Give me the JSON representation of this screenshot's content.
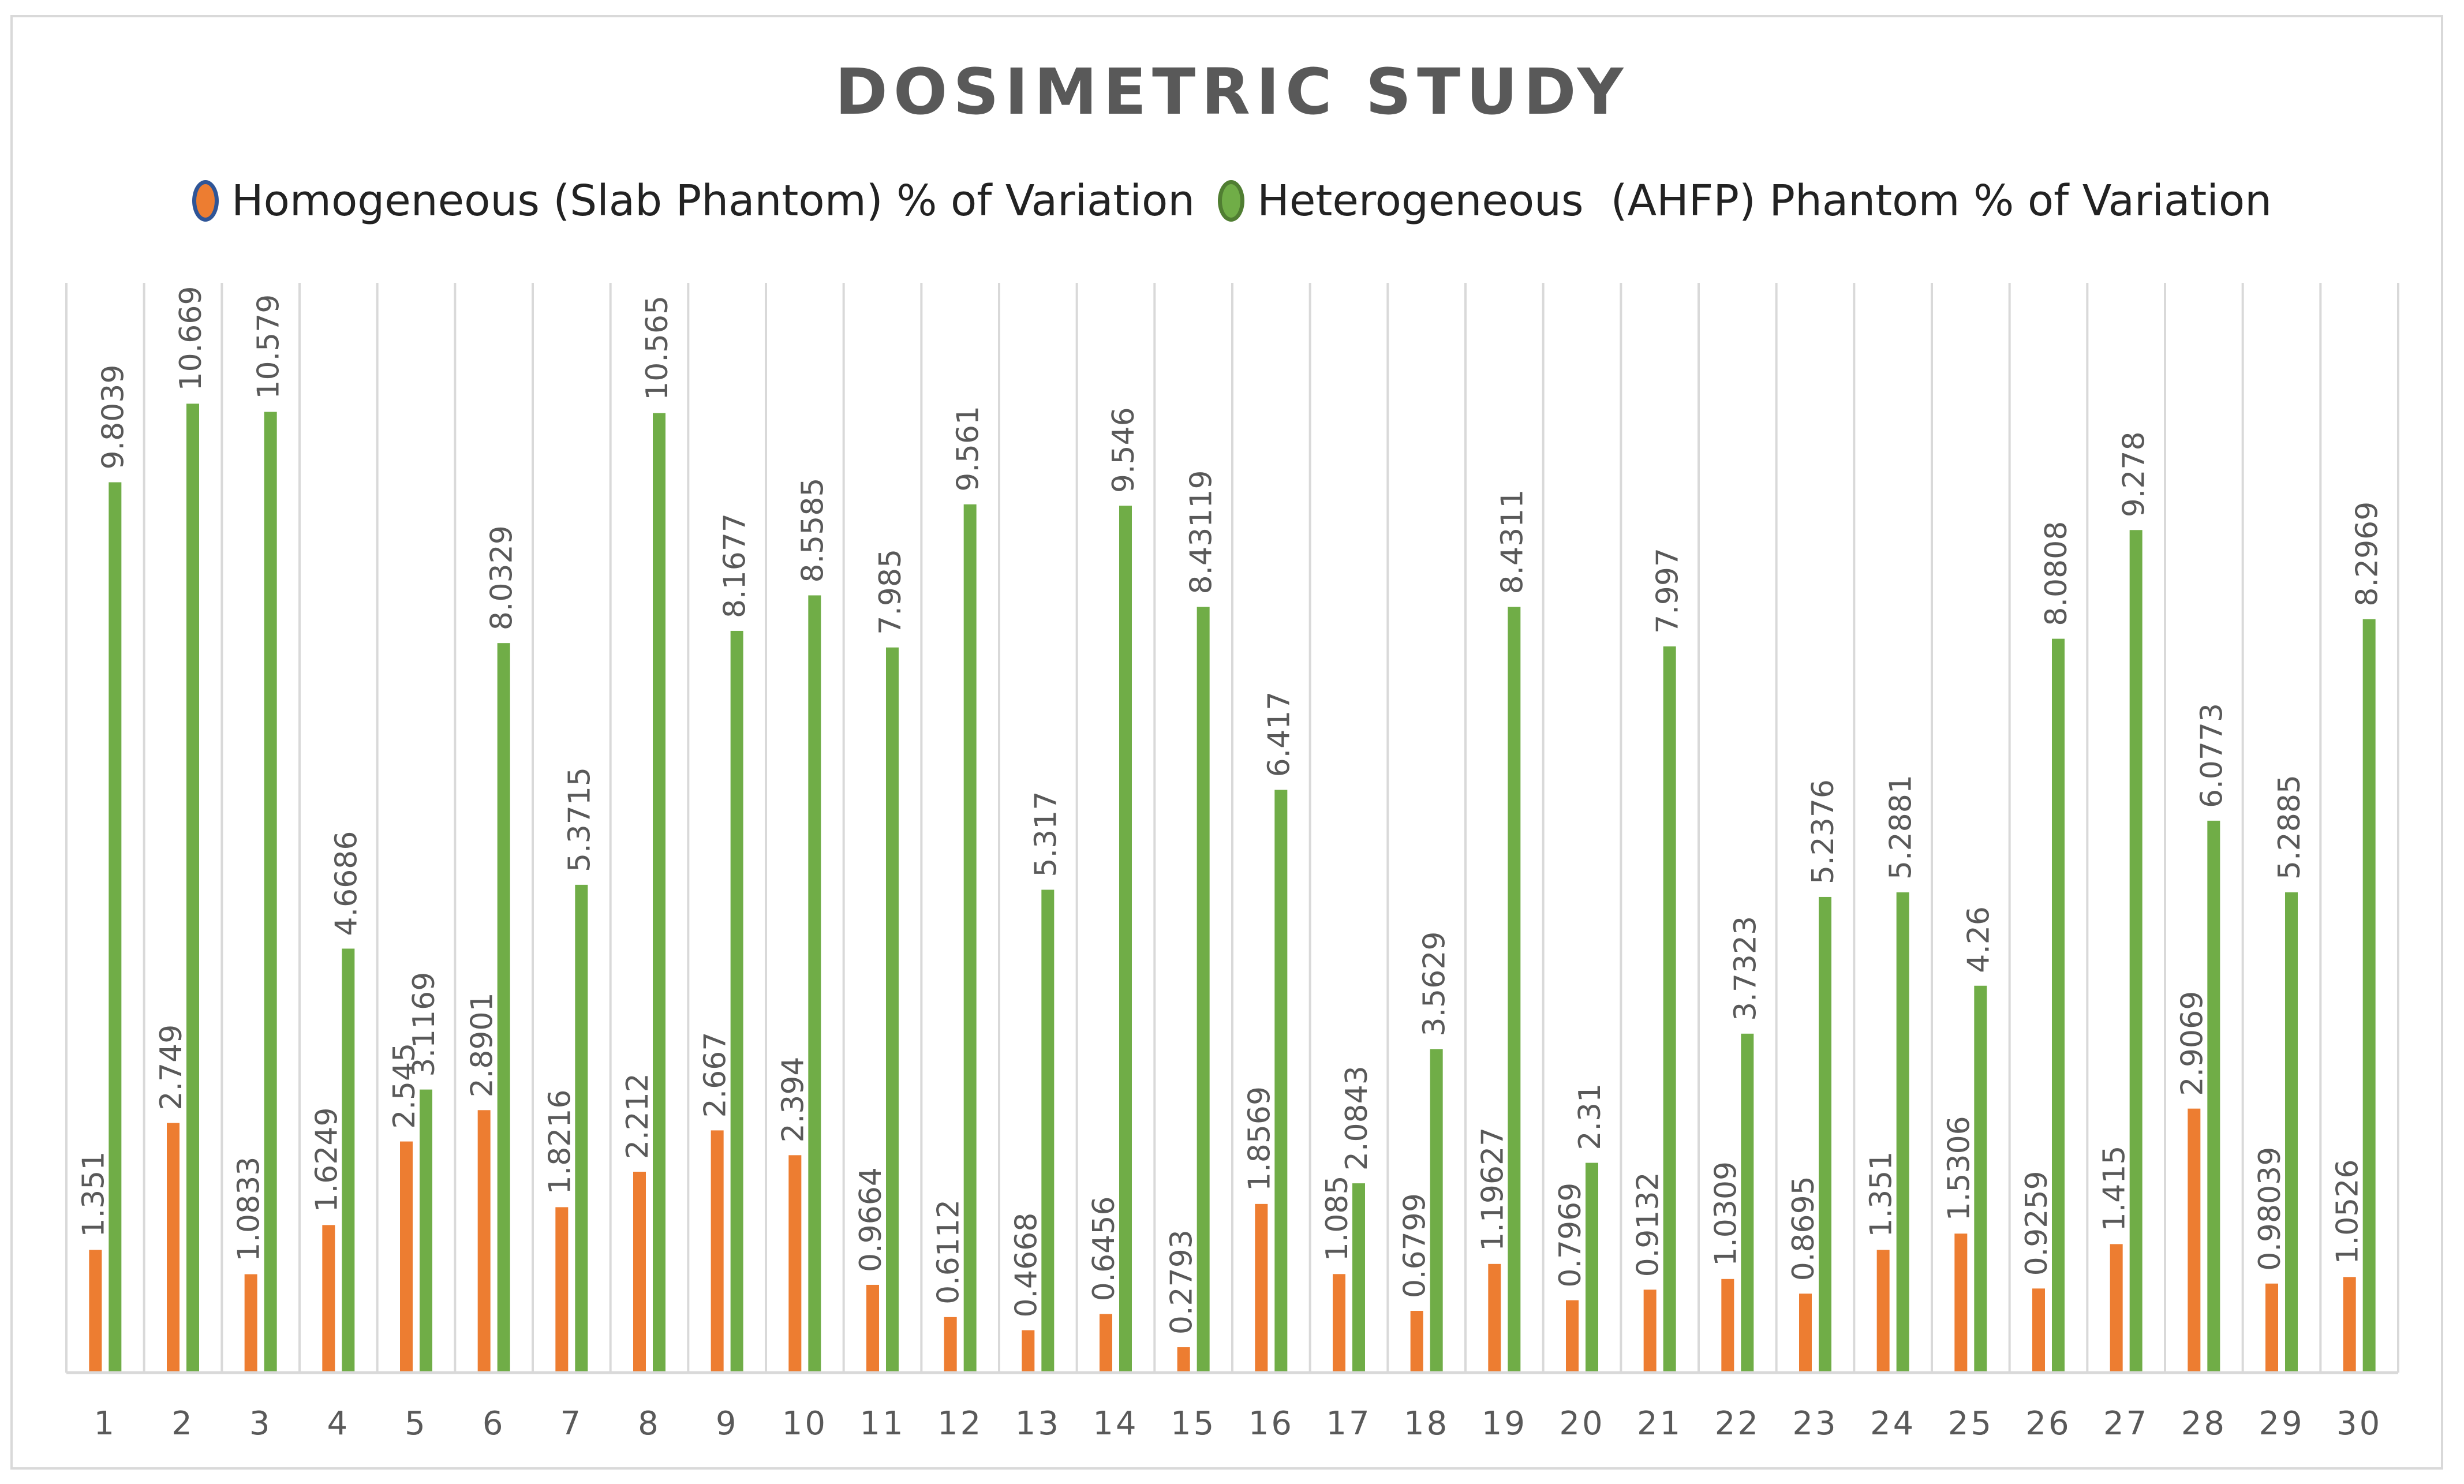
{
  "chart_data": {
    "type": "bar",
    "title": "DOSIMETRIC STUDY",
    "xlabel": "",
    "ylabel": "",
    "ylim": [
      0,
      12
    ],
    "grid": "vertical",
    "legend_position": "top",
    "categories": [
      "1",
      "2",
      "3",
      "4",
      "5",
      "6",
      "7",
      "8",
      "9",
      "10",
      "11",
      "12",
      "13",
      "14",
      "15",
      "16",
      "17",
      "18",
      "19",
      "20",
      "21",
      "22",
      "23",
      "24",
      "25",
      "26",
      "27",
      "28",
      "29",
      "30"
    ],
    "series": [
      {
        "name": "Homogeneous (Slab Phantom) % of Variation",
        "color": "#ed7d31",
        "values": [
          1.351,
          2.749,
          1.0833,
          1.6249,
          2.545,
          2.8901,
          1.8216,
          2.212,
          2.667,
          2.394,
          0.9664,
          0.6112,
          0.4668,
          0.6456,
          0.2793,
          1.8569,
          1.085,
          0.6799,
          1.19627,
          0.7969,
          0.9132,
          1.0309,
          0.8695,
          1.351,
          1.5306,
          0.9259,
          1.415,
          2.9069,
          0.98039,
          1.0526
        ],
        "labels": [
          "1.351",
          "2.749",
          "1.0833",
          "1.6249",
          "2.545",
          "2.8901",
          "1.8216",
          "2.212",
          "2.667",
          "2.394",
          "0.9664",
          "0.6112",
          "0.4668",
          "0.6456",
          "0.2793",
          "1.8569",
          "1.085",
          "0.6799",
          "1.19627",
          "0.7969",
          "0.9132",
          "1.0309",
          "0.8695",
          "1.351",
          "1.5306",
          "0.9259",
          "1.415",
          "2.9069",
          "0.98039",
          "1.0526"
        ]
      },
      {
        "name": "Heterogeneous  (AHFP) Phantom % of Variation",
        "color": "#70ad47",
        "values": [
          9.8039,
          10.669,
          10.579,
          4.6686,
          3.1169,
          8.0329,
          5.3715,
          10.565,
          8.1677,
          8.5585,
          7.985,
          9.561,
          5.317,
          9.546,
          8.43119,
          6.417,
          2.0843,
          3.5629,
          8.4311,
          2.31,
          7.997,
          3.7323,
          5.2376,
          5.2881,
          4.26,
          8.0808,
          9.278,
          6.0773,
          5.2885,
          8.2969
        ],
        "labels": [
          "9.8039",
          "10.669",
          "10.579",
          "4.6686",
          "3.1169",
          "8.0329",
          "5.3715",
          "10.565",
          "8.1677",
          "8.5585",
          "7.985",
          "9.561",
          "5.317",
          "9.546",
          "8.43119",
          "6.417",
          "2.0843",
          "3.5629",
          "8.4311",
          "2.31",
          "7.997",
          "3.7323",
          "5.2376",
          "5.2881",
          "4.26",
          "8.0808",
          "9.278",
          "6.0773",
          "5.2885",
          "8.2969"
        ]
      }
    ]
  },
  "colors": {
    "homogeneous_fill": "#ed7d31",
    "homogeneous_legend_border": "#2f5597",
    "heterogeneous_fill": "#70ad47",
    "gridline": "#d9d9d9",
    "label_text": "#595959"
  }
}
